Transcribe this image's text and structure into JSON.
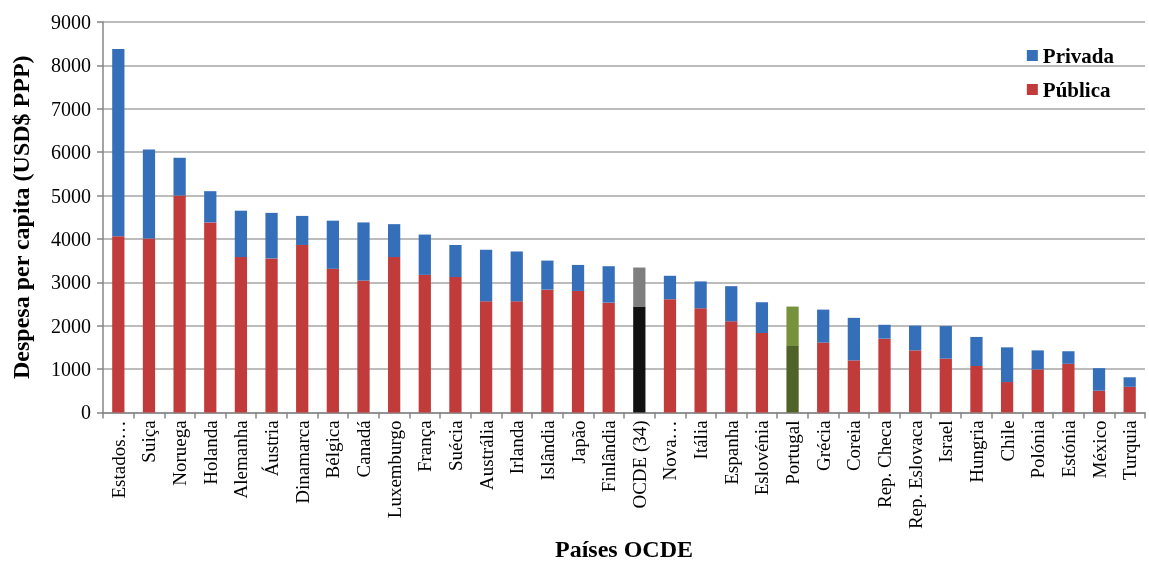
{
  "chart_data": {
    "type": "bar",
    "stacked": true,
    "xlabel": "Países OCDE",
    "ylabel": "Despesa per capita (USD$ PPP)",
    "categories": [
      "Estados…",
      "Suiça",
      "Noruega",
      "Holanda",
      "Alemanha",
      "Áustria",
      "Dinamarca",
      "Bélgica",
      "Canadá",
      "Luxemburgo",
      "França",
      "Suécia",
      "Austrália",
      "Irlanda",
      "Islândia",
      "Japão",
      "Finlândia",
      "OCDE (34)",
      "Nova…",
      "Itália",
      "Espanha",
      "Eslovénia",
      "Portugal",
      "Grécia",
      "Coreia",
      "Rep. Checa",
      "Rep. Eslovaca",
      "Israel",
      "Hungria",
      "Chile",
      "Polónia",
      "Estónia",
      "México",
      "Turquia"
    ],
    "series": [
      {
        "name": "Pública",
        "color": "#c23b3b",
        "colors": [
          "#c23b3b",
          "#c23b3b",
          "#c23b3b",
          "#c23b3b",
          "#c23b3b",
          "#c23b3b",
          "#c23b3b",
          "#c23b3b",
          "#c23b3b",
          "#c23b3b",
          "#c23b3b",
          "#c23b3b",
          "#c23b3b",
          "#c23b3b",
          "#c23b3b",
          "#c23b3b",
          "#c23b3b",
          "#111111",
          "#c23b3b",
          "#c23b3b",
          "#c23b3b",
          "#c23b3b",
          "#4f6228",
          "#c23b3b",
          "#c23b3b",
          "#c23b3b",
          "#c23b3b",
          "#c23b3b",
          "#c23b3b",
          "#c23b3b",
          "#c23b3b",
          "#c23b3b",
          "#c23b3b",
          "#c23b3b"
        ],
        "values": [
          4060,
          4010,
          5000,
          4380,
          3580,
          3550,
          3860,
          3310,
          3040,
          3580,
          3170,
          3120,
          2560,
          2560,
          2830,
          2800,
          2530,
          2440,
          2610,
          2400,
          2100,
          1830,
          1530,
          1610,
          1200,
          1700,
          1430,
          1240,
          1070,
          700,
          990,
          1120,
          500,
          590
        ]
      },
      {
        "name": "Privada",
        "color": "#356fba",
        "colors": [
          "#356fba",
          "#356fba",
          "#356fba",
          "#356fba",
          "#356fba",
          "#356fba",
          "#356fba",
          "#356fba",
          "#356fba",
          "#356fba",
          "#356fba",
          "#356fba",
          "#356fba",
          "#356fba",
          "#356fba",
          "#356fba",
          "#356fba",
          "#7f7f7f",
          "#356fba",
          "#356fba",
          "#356fba",
          "#356fba",
          "#76923c",
          "#356fba",
          "#356fba",
          "#356fba",
          "#356fba",
          "#356fba",
          "#356fba",
          "#356fba",
          "#356fba",
          "#356fba",
          "#356fba",
          "#356fba"
        ],
        "values": [
          4320,
          2050,
          870,
          720,
          1070,
          1050,
          670,
          1110,
          1340,
          760,
          930,
          740,
          1190,
          1150,
          670,
          600,
          840,
          900,
          540,
          620,
          810,
          710,
          910,
          760,
          980,
          320,
          570,
          750,
          670,
          800,
          440,
          290,
          520,
          220
        ]
      }
    ],
    "ylim": [
      0,
      9000
    ],
    "yticks": [
      0,
      1000,
      2000,
      3000,
      4000,
      5000,
      6000,
      7000,
      8000,
      9000
    ],
    "grid": "y",
    "legend": "top right"
  }
}
